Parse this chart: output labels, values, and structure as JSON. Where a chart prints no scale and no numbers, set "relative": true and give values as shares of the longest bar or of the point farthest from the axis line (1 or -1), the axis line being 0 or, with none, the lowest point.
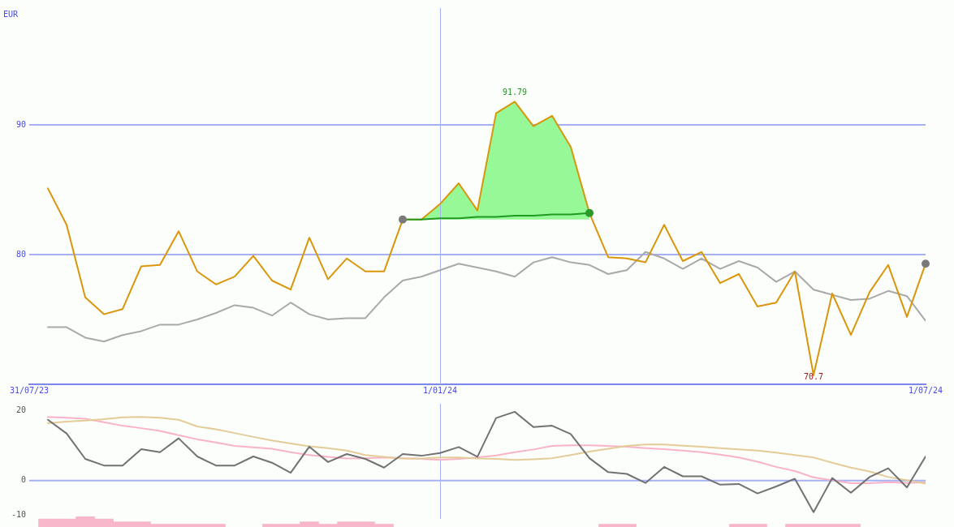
{
  "chart_data": [
    {
      "type": "line",
      "ylabel": "EUR",
      "x": [
        "2023-08-07",
        "2023-08-14",
        "2023-08-21",
        "2023-08-28",
        "2023-09-04",
        "2023-09-11",
        "2023-09-18",
        "2023-09-25",
        "2023-10-02",
        "2023-10-09",
        "2023-10-16",
        "2023-10-23",
        "2023-10-30",
        "2023-11-06",
        "2023-11-13",
        "2023-11-20",
        "2023-11-27",
        "2023-12-04",
        "2023-12-11",
        "2023-12-18",
        "2023-12-25",
        "2024-01-01",
        "2024-01-08",
        "2024-01-15",
        "2024-01-22",
        "2024-01-29",
        "2024-02-05",
        "2024-02-12",
        "2024-02-19",
        "2024-02-26",
        "2024-03-04",
        "2024-03-11",
        "2024-03-18",
        "2024-03-25",
        "2024-04-01",
        "2024-04-08",
        "2024-04-15",
        "2024-04-22",
        "2024-04-29",
        "2024-05-06",
        "2024-05-13",
        "2024-05-20",
        "2024-05-27",
        "2024-06-03",
        "2024-06-10",
        "2024-06-17",
        "2024-06-24",
        "2024-07-01"
      ],
      "xlim": [
        "2023-07-31",
        "2024-07-01"
      ],
      "xticks": [
        {
          "value": "2023-07-31",
          "label": "31/07/23"
        },
        {
          "value": "2024-01-01",
          "label": "1/01/24"
        },
        {
          "value": "2024-07-01",
          "label": "1/07/24"
        }
      ],
      "ylim": [
        70,
        99
      ],
      "yticks": [
        80,
        90
      ],
      "grid": "y",
      "ref_lines": [
        {
          "axis": "x",
          "value": "2024-01-01",
          "color": "#a6b1f4"
        }
      ],
      "annotations": [
        {
          "text": "91.79",
          "x": "2024-01-29",
          "y": 91.79
        },
        {
          "text": "70.7",
          "x": "2024-05-20",
          "y": 70.7
        }
      ],
      "series": [
        {
          "color": "#a9a9a9",
          "values": [
            74.4,
            74.4,
            73.6,
            73.3,
            73.8,
            74.1,
            74.6,
            74.6,
            75.0,
            75.5,
            76.1,
            75.9,
            75.3,
            76.3,
            75.4,
            75.0,
            75.1,
            75.1,
            76.7,
            78.0,
            78.3,
            78.8,
            79.3,
            79.0,
            78.7,
            78.3,
            79.4,
            79.8,
            79.4,
            79.2,
            78.5,
            78.8,
            80.2,
            79.7,
            78.9,
            79.7,
            78.9,
            79.5,
            79.0,
            77.9,
            78.7,
            77.3,
            76.9,
            76.5,
            76.6,
            77.2,
            76.8,
            74.9
          ]
        },
        {
          "color": "#d9960a",
          "values": [
            85.1,
            82.3,
            76.7,
            75.4,
            75.8,
            79.1,
            79.2,
            81.8,
            78.7,
            77.7,
            78.3,
            79.9,
            78.0,
            77.3,
            81.3,
            78.1,
            79.7,
            78.7,
            78.7,
            82.7,
            82.7,
            83.9,
            85.5,
            83.4,
            90.9,
            91.79,
            89.9,
            90.7,
            88.3,
            83.2,
            79.8,
            79.7,
            79.4,
            82.3,
            79.5,
            80.2,
            77.8,
            78.5,
            76.0,
            76.3,
            78.7,
            70.7,
            77.0,
            73.8,
            77.1,
            79.2,
            75.2,
            79.3
          ]
        },
        {
          "color": "#229a22",
          "x": [
            "2023-12-18",
            "2023-12-25",
            "2024-01-01",
            "2024-01-08",
            "2024-01-15",
            "2024-01-22",
            "2024-01-29",
            "2024-02-05",
            "2024-02-12",
            "2024-02-19",
            "2024-02-26"
          ],
          "values": [
            82.7,
            82.7,
            82.8,
            82.8,
            82.9,
            82.9,
            83.0,
            83.0,
            83.1,
            83.1,
            83.2
          ],
          "lower": [
            82.7,
            82.7,
            82.7,
            82.7,
            82.7,
            82.7,
            82.7,
            82.7,
            82.7,
            82.7,
            82.7
          ],
          "upper": [
            82.7,
            82.7,
            83.9,
            85.5,
            83.4,
            90.9,
            91.79,
            89.9,
            90.7,
            88.3,
            83.2
          ]
        },
        {
          "type": "scatter",
          "marker": "circle",
          "x": [
            "2023-12-18",
            "2024-02-26",
            "2024-07-01"
          ],
          "values": [
            82.7,
            83.2,
            79.3
          ],
          "colors": [
            "#7a7a7a",
            "#2a9a2a",
            "#7a7a7a"
          ]
        }
      ]
    },
    {
      "type": "line",
      "x": [
        "2023-08-07",
        "2023-08-14",
        "2023-08-21",
        "2023-08-28",
        "2023-09-04",
        "2023-09-11",
        "2023-09-18",
        "2023-09-25",
        "2023-10-02",
        "2023-10-09",
        "2023-10-16",
        "2023-10-23",
        "2023-10-30",
        "2023-11-06",
        "2023-11-13",
        "2023-11-20",
        "2023-11-27",
        "2023-12-04",
        "2023-12-11",
        "2023-12-18",
        "2023-12-25",
        "2024-01-01",
        "2024-01-08",
        "2024-01-15",
        "2024-01-22",
        "2024-01-29",
        "2024-02-05",
        "2024-02-12",
        "2024-02-19",
        "2024-02-26",
        "2024-03-04",
        "2024-03-11",
        "2024-03-18",
        "2024-03-25",
        "2024-04-01",
        "2024-04-08",
        "2024-04-15",
        "2024-04-22",
        "2024-04-29",
        "2024-05-06",
        "2024-05-13",
        "2024-05-20",
        "2024-05-27",
        "2024-06-03",
        "2024-06-10",
        "2024-06-17",
        "2024-06-24",
        "2024-07-01"
      ],
      "xlim": [
        "2023-07-31",
        "2024-07-01"
      ],
      "tick_labels": "y",
      "ylim": [
        -11,
        22
      ],
      "yticks": [
        20,
        0,
        -10
      ],
      "ref_lines": [
        {
          "axis": "y",
          "value": 0,
          "color": "#a6b1f4"
        },
        {
          "axis": "x",
          "value": "2024-01-01",
          "color": "#a6b1f4"
        }
      ],
      "series": [
        {
          "color": "#f9b2c8",
          "values": [
            18.2,
            18.0,
            17.7,
            16.7,
            15.7,
            15.0,
            14.2,
            13.0,
            11.8,
            10.9,
            9.9,
            9.5,
            9.1,
            8.1,
            7.3,
            6.8,
            6.3,
            6.4,
            6.6,
            6.4,
            6.2,
            5.9,
            6.2,
            6.6,
            7.2,
            8.1,
            8.9,
            9.9,
            10.1,
            10.1,
            9.9,
            9.7,
            9.3,
            9.0,
            8.6,
            8.1,
            7.4,
            6.6,
            5.4,
            3.9,
            2.7,
            0.9,
            0.1,
            -0.8,
            -0.8,
            -0.5,
            -0.7,
            -0.5
          ]
        },
        {
          "color": "#e3cc98",
          "values": [
            16.4,
            16.9,
            17.2,
            17.6,
            18.1,
            18.2,
            18.0,
            17.4,
            15.5,
            14.7,
            13.6,
            12.5,
            11.5,
            10.6,
            9.8,
            9.3,
            8.6,
            7.3,
            6.8,
            6.3,
            6.3,
            6.6,
            6.6,
            6.3,
            6.2,
            5.9,
            6.1,
            6.4,
            7.3,
            8.3,
            9.1,
            9.9,
            10.3,
            10.3,
            10.0,
            9.7,
            9.3,
            8.9,
            8.6,
            8.0,
            7.3,
            6.6,
            5.1,
            3.7,
            2.6,
            1.0,
            0.1,
            -0.9
          ]
        },
        {
          "color": "#727272",
          "values": [
            17.4,
            13.5,
            6.2,
            4.3,
            4.3,
            9.0,
            8.1,
            12.1,
            6.9,
            4.3,
            4.3,
            6.9,
            5.1,
            2.2,
            9.7,
            5.3,
            7.6,
            6.2,
            3.7,
            7.6,
            7.1,
            7.9,
            9.6,
            6.8,
            17.9,
            19.7,
            15.3,
            15.7,
            13.3,
            6.4,
            2.4,
            1.9,
            -0.7,
            3.9,
            1.2,
            1.2,
            -1.2,
            -1.0,
            -3.7,
            -1.7,
            0.5,
            -9.1,
            0.7,
            -3.5,
            1.0,
            3.5,
            -2.0,
            6.9
          ]
        }
      ]
    },
    {
      "type": "bar",
      "relative": true,
      "tick_labels": false,
      "x": [
        "2023-08-07",
        "2023-08-14",
        "2023-08-21",
        "2023-08-28",
        "2023-09-04",
        "2023-09-11",
        "2023-09-18",
        "2023-09-25",
        "2023-10-02",
        "2023-10-09",
        "2023-10-30",
        "2023-11-06",
        "2023-11-13",
        "2023-11-20",
        "2023-11-27",
        "2023-12-04",
        "2023-12-11",
        "2024-03-04",
        "2024-03-11",
        "2024-04-22",
        "2024-04-29",
        "2024-05-13",
        "2024-05-20",
        "2024-05-27",
        "2024-06-03"
      ],
      "xlim": [
        "2023-07-31",
        "2024-07-01"
      ],
      "color": "#f8b6ca",
      "values": [
        0.76,
        0.76,
        1,
        0.76,
        0.49,
        0.49,
        0.27,
        0.27,
        0.27,
        0.27,
        0.27,
        0.27,
        0.49,
        0.27,
        0.49,
        0.49,
        0.27,
        0.27,
        0.27,
        0.27,
        0.27,
        0.27,
        0.27,
        0.27,
        0.27
      ]
    }
  ]
}
